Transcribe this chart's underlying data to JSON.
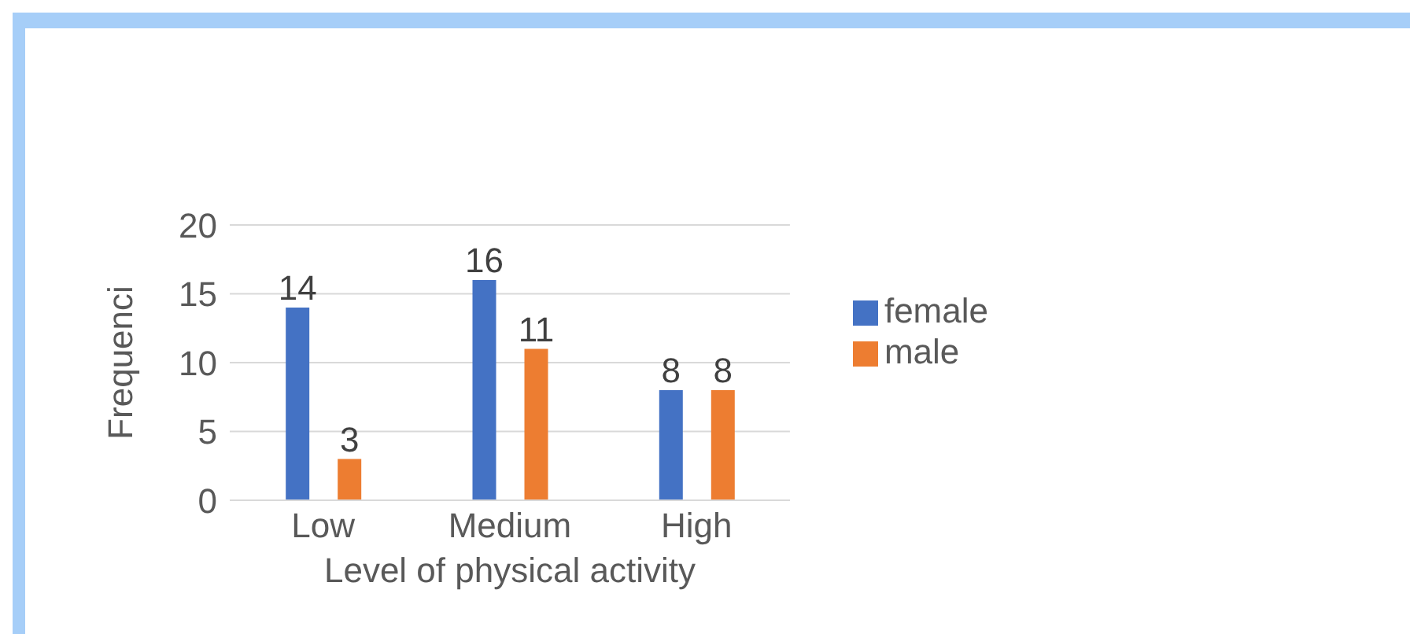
{
  "chart_data": {
    "type": "bar",
    "xlabel": "Level of physical activity",
    "ylabel": "Frequenci",
    "categories": [
      "Low",
      "Medium",
      "High"
    ],
    "series": [
      {
        "name": "female",
        "color": "#4472c4",
        "values": [
          14,
          16,
          8
        ]
      },
      {
        "name": "male",
        "color": "#ed7d31",
        "values": [
          3,
          11,
          8
        ]
      }
    ],
    "ylim": [
      0,
      20
    ],
    "yticks": [
      0,
      5,
      10,
      15,
      20
    ],
    "grid": "y",
    "legend": "right",
    "data_labels": true
  }
}
